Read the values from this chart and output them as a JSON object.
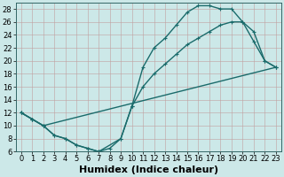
{
  "xlabel": "Humidex (Indice chaleur)",
  "bg_color": "#cce8e8",
  "line_color": "#1a6b6b",
  "xlim": [
    -0.5,
    23.5
  ],
  "ylim": [
    6,
    29
  ],
  "xticks": [
    0,
    1,
    2,
    3,
    4,
    5,
    6,
    7,
    8,
    9,
    10,
    11,
    12,
    13,
    14,
    15,
    16,
    17,
    18,
    19,
    20,
    21,
    22,
    23
  ],
  "yticks": [
    6,
    8,
    10,
    12,
    14,
    16,
    18,
    20,
    22,
    24,
    26,
    28
  ],
  "line1_x": [
    0,
    1,
    2,
    3,
    4,
    5,
    6,
    7,
    9,
    10,
    11,
    12,
    13,
    14,
    15,
    16,
    17,
    18,
    19,
    20,
    21,
    22,
    23
  ],
  "line1_y": [
    12,
    11,
    10,
    8.5,
    8,
    7,
    6.5,
    6,
    8,
    13,
    19,
    22,
    23.5,
    25.5,
    27.5,
    28.5,
    28.5,
    28,
    28,
    26,
    24.5,
    20,
    19
  ],
  "line2_x": [
    0,
    1,
    2,
    3,
    4,
    5,
    6,
    7,
    8,
    9,
    10,
    11,
    12,
    13,
    14,
    15,
    16,
    17,
    18,
    19,
    20,
    21,
    22,
    23
  ],
  "line2_y": [
    12,
    11,
    10,
    8.5,
    8,
    7,
    6.5,
    6,
    6.5,
    8,
    13,
    16,
    18,
    19.5,
    21,
    22.5,
    23.5,
    24.5,
    25.5,
    26,
    26,
    23,
    20,
    19
  ],
  "line3_x": [
    0,
    1,
    2,
    23
  ],
  "line3_y": [
    12,
    11,
    10,
    19
  ],
  "xlabel_fontsize": 8,
  "tick_fontsize": 6,
  "linewidth": 1.0,
  "markersize": 3
}
